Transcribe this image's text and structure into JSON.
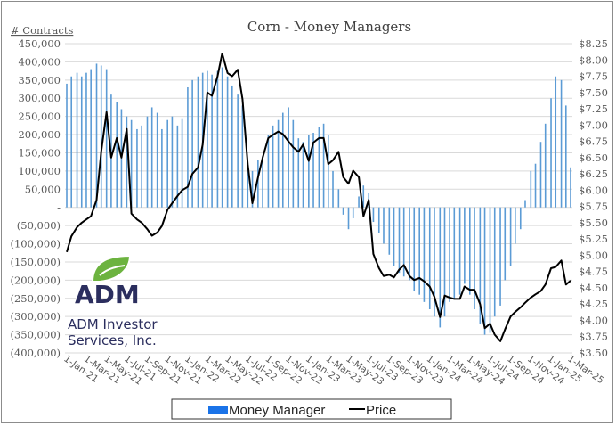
{
  "chart_data": {
    "type": "bar+line",
    "title": "Corn - Money Managers",
    "ylabel_left": "# Contracts",
    "ylim_left": [
      -400000,
      450000
    ],
    "ylim_right": [
      3.5,
      8.25
    ],
    "yticks_left": [
      "450,000",
      "400,000",
      "350,000",
      "300,000",
      "250,000",
      "200,000",
      "150,000",
      "100,000",
      "50,000",
      "-",
      "(50,000)",
      "(100,000)",
      "(150,000)",
      "(200,000)",
      "(250,000)",
      "(300,000)",
      "(350,000)",
      "(400,000)"
    ],
    "yticks_right": [
      "$8.25",
      "$8.00",
      "$7.75",
      "$7.50",
      "$7.25",
      "$7.00",
      "$6.75",
      "$6.50",
      "$6.25",
      "$6.00",
      "$5.75",
      "$5.50",
      "$5.25",
      "$5.00",
      "$4.75",
      "$4.50",
      "$4.25",
      "$4.00",
      "$3.75",
      "$3.50"
    ],
    "xticks": [
      "1-Jan-21",
      "1-Mar-21",
      "1-May-21",
      "1-Jul-21",
      "1-Sep-21",
      "1-Nov-21",
      "1-Jan-22",
      "1-Mar-22",
      "1-May-22",
      "1-Jul-22",
      "1-Sep-22",
      "1-Nov-22",
      "1-Jan-23",
      "1-Mar-23",
      "1-May-23",
      "1-Jul-23",
      "1-Sep-23",
      "1-Nov-23",
      "1-Jan-24",
      "1-Mar-24",
      "1-May-24",
      "1-Jul-24",
      "1-Sep-24",
      "1-Nov-24",
      "1-Jan-25",
      "1-Mar-25"
    ],
    "grid": true,
    "legend_position": "bottom",
    "dates": [
      "2021-01-01",
      "2021-01-15",
      "2021-02-01",
      "2021-02-15",
      "2021-03-01",
      "2021-03-15",
      "2021-04-01",
      "2021-04-15",
      "2021-05-01",
      "2021-05-15",
      "2021-06-01",
      "2021-06-15",
      "2021-07-01",
      "2021-07-15",
      "2021-08-01",
      "2021-08-15",
      "2021-09-01",
      "2021-09-15",
      "2021-10-01",
      "2021-10-15",
      "2021-11-01",
      "2021-11-15",
      "2021-12-01",
      "2021-12-15",
      "2022-01-01",
      "2022-01-15",
      "2022-02-01",
      "2022-02-15",
      "2022-03-01",
      "2022-03-15",
      "2022-04-01",
      "2022-04-15",
      "2022-05-01",
      "2022-05-15",
      "2022-06-01",
      "2022-06-15",
      "2022-07-01",
      "2022-07-15",
      "2022-08-01",
      "2022-08-15",
      "2022-09-01",
      "2022-09-15",
      "2022-10-01",
      "2022-10-15",
      "2022-11-01",
      "2022-11-15",
      "2022-12-01",
      "2022-12-15",
      "2023-01-01",
      "2023-01-15",
      "2023-02-01",
      "2023-02-15",
      "2023-03-01",
      "2023-03-15",
      "2023-04-01",
      "2023-04-15",
      "2023-05-01",
      "2023-05-15",
      "2023-06-01",
      "2023-06-15",
      "2023-07-01",
      "2023-07-15",
      "2023-08-01",
      "2023-08-15",
      "2023-09-01",
      "2023-09-15",
      "2023-10-01",
      "2023-10-15",
      "2023-11-01",
      "2023-11-15",
      "2023-12-01",
      "2023-12-15",
      "2024-01-01",
      "2024-01-15",
      "2024-02-01",
      "2024-02-15",
      "2024-03-01",
      "2024-03-15",
      "2024-04-01",
      "2024-04-15",
      "2024-05-01",
      "2024-05-15",
      "2024-06-01",
      "2024-06-15",
      "2024-07-01",
      "2024-07-15",
      "2024-08-01",
      "2024-08-15",
      "2024-09-01",
      "2024-09-15",
      "2024-10-01",
      "2024-10-15",
      "2024-11-01",
      "2024-11-15",
      "2024-12-01",
      "2024-12-15",
      "2025-01-01",
      "2025-01-15",
      "2025-02-01",
      "2025-02-15",
      "2025-03-01"
    ],
    "series": [
      {
        "name": "Money Manager",
        "type": "bar",
        "axis": "left",
        "color": "#5b9bd5",
        "legend_color": "#1a73e8",
        "values": [
          340000,
          360000,
          370000,
          360000,
          370000,
          380000,
          395000,
          390000,
          380000,
          310000,
          290000,
          270000,
          250000,
          240000,
          215000,
          225000,
          250000,
          275000,
          260000,
          215000,
          240000,
          250000,
          225000,
          245000,
          330000,
          350000,
          360000,
          370000,
          375000,
          365000,
          375000,
          385000,
          360000,
          335000,
          310000,
          280000,
          120000,
          100000,
          130000,
          140000,
          200000,
          225000,
          240000,
          260000,
          275000,
          240000,
          190000,
          180000,
          200000,
          205000,
          220000,
          230000,
          200000,
          100000,
          50000,
          -20000,
          -60000,
          -30000,
          30000,
          60000,
          40000,
          -40000,
          -70000,
          -100000,
          -130000,
          -160000,
          -180000,
          -190000,
          -200000,
          -230000,
          -240000,
          -260000,
          -280000,
          -300000,
          -330000,
          -300000,
          -260000,
          -250000,
          -240000,
          -210000,
          -240000,
          -280000,
          -320000,
          -350000,
          -345000,
          -300000,
          -270000,
          -200000,
          -160000,
          -100000,
          -60000,
          20000,
          100000,
          120000,
          180000,
          230000,
          300000,
          360000,
          350000,
          280000,
          110000
        ]
      },
      {
        "name": "Price",
        "type": "line",
        "axis": "right",
        "color": "#000000",
        "values": [
          5.05,
          5.29,
          5.43,
          5.5,
          5.55,
          5.6,
          5.85,
          6.59,
          7.2,
          6.5,
          6.8,
          6.5,
          6.94,
          5.64,
          5.55,
          5.5,
          5.4,
          5.3,
          5.35,
          5.45,
          5.7,
          5.8,
          5.91,
          6.0,
          6.05,
          6.25,
          6.35,
          6.7,
          7.5,
          7.45,
          7.75,
          8.1,
          7.8,
          7.75,
          7.85,
          7.4,
          6.4,
          5.8,
          6.2,
          6.5,
          6.8,
          6.85,
          6.9,
          6.86,
          6.75,
          6.66,
          6.59,
          6.7,
          6.45,
          6.73,
          6.8,
          6.8,
          6.4,
          6.46,
          6.59,
          6.2,
          6.1,
          6.3,
          6.2,
          5.6,
          5.85,
          5.02,
          4.8,
          4.68,
          4.7,
          4.66,
          4.78,
          4.85,
          4.68,
          4.62,
          4.65,
          4.6,
          4.52,
          4.36,
          4.05,
          4.38,
          4.35,
          4.33,
          4.33,
          4.52,
          4.47,
          4.47,
          4.25,
          3.88,
          3.95,
          3.78,
          3.68,
          3.86,
          4.06,
          4.13,
          4.2,
          4.27,
          4.35,
          4.4,
          4.45,
          4.55,
          4.8,
          4.82,
          4.92,
          4.55,
          4.61
        ]
      }
    ]
  },
  "logo": {
    "brand": "ADM",
    "line1": "ADM Investor",
    "line2": "Services, Inc.",
    "leaf_color": "#6cb33f",
    "text_color": "#2b2e5e"
  }
}
